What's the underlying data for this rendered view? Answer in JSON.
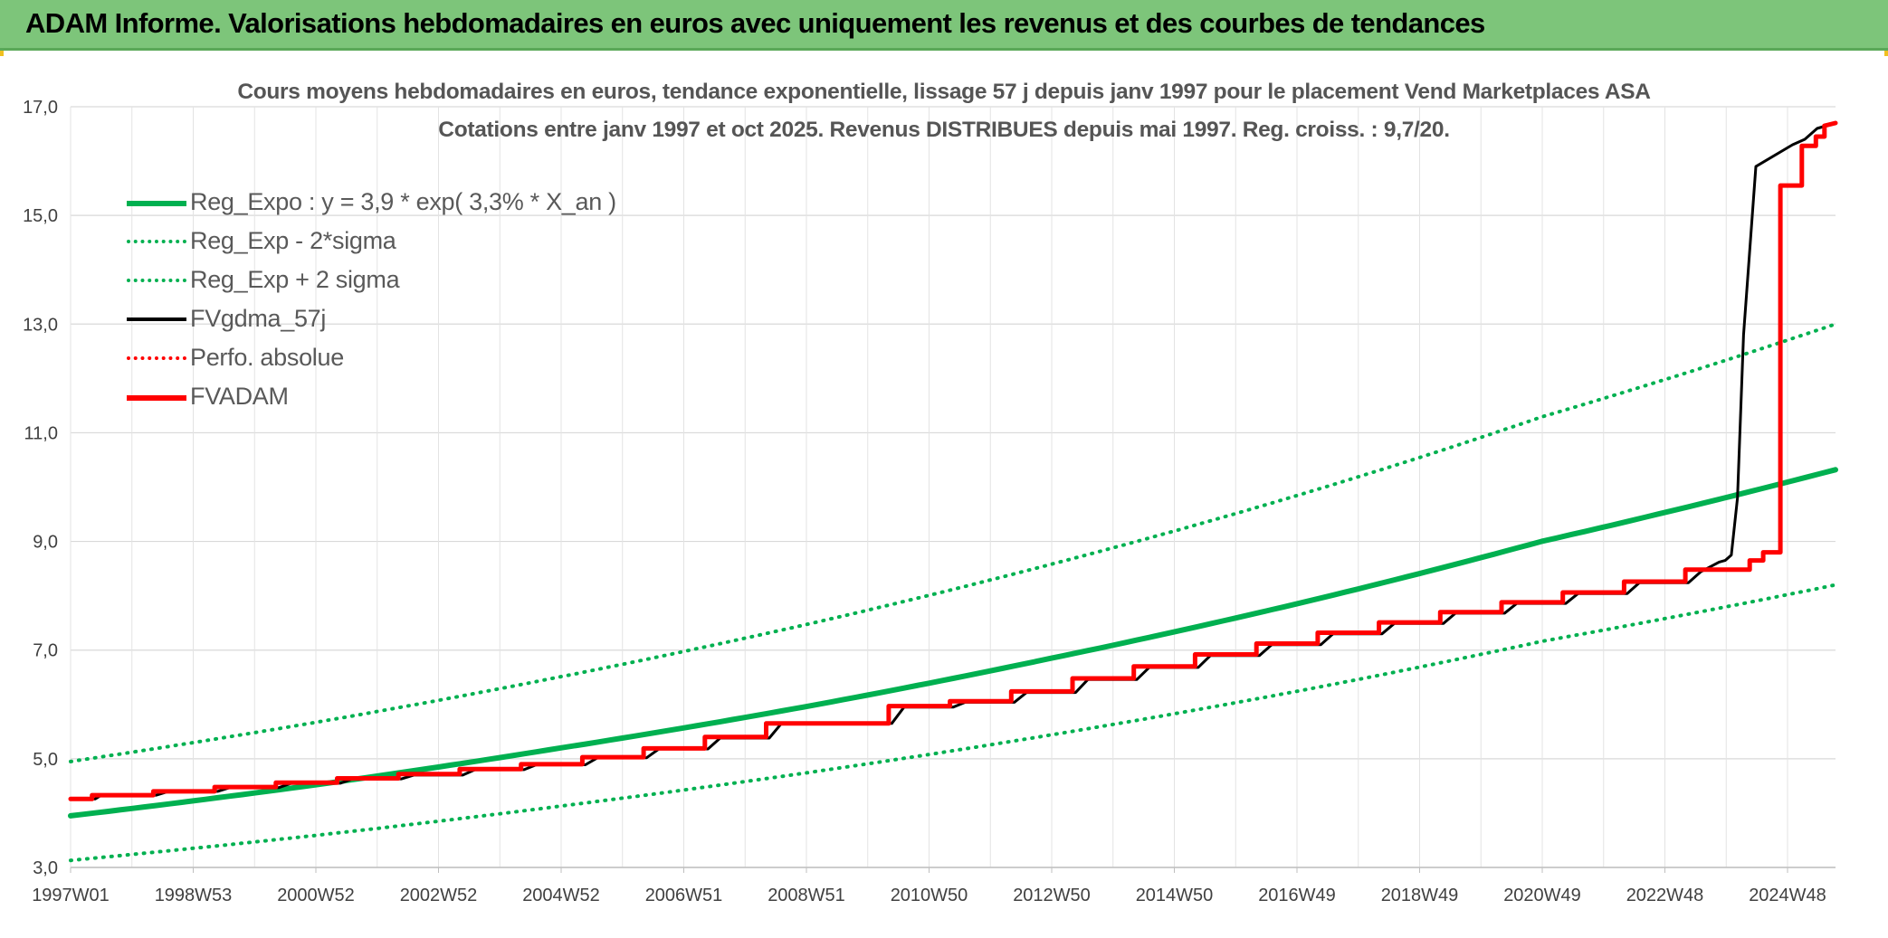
{
  "banner": {
    "title": "ADAM Informe. Valorisations hebdomadaires en euros avec uniquement les revenus et des courbes de tendances"
  },
  "colors": {
    "banner_bg": "#7dc57a",
    "reg_expo": "#00b050",
    "fvgdma": "#000000",
    "fvadam": "#ff0000",
    "grid": "#d9d9d9"
  },
  "chart_data": {
    "type": "line",
    "title": "Cours moyens hebdomadaires en euros, tendance exponentielle, lissage 57 j depuis janv 1997 pour le placement Vend Marketplaces ASA",
    "subtitle": "Cotations entre janv 1997 et oct 2025. Revenus DISTRIBUES depuis mai 1997. Reg. croiss. : 9,7/20.",
    "xlabel": "",
    "ylabel": "",
    "ylim": [
      3.0,
      17.0
    ],
    "y_ticks": [
      "3,0",
      "5,0",
      "7,0",
      "9,0",
      "11,0",
      "13,0",
      "15,0",
      "17,0"
    ],
    "x_range_years": [
      1997.0,
      2025.8
    ],
    "x_ticks": [
      "1997W01",
      "1998W53",
      "2000W52",
      "2002W52",
      "2004W52",
      "2006W51",
      "2008W51",
      "2010W50",
      "2012W50",
      "2014W50",
      "2016W49",
      "2018W49",
      "2020W49",
      "2022W48",
      "2024W48"
    ],
    "grid": true,
    "legend_placement": "top-left",
    "legend": [
      {
        "label": "Reg_Expo : y = 3,9 * exp( 3,3% *  X_an )",
        "color": "#00b050",
        "style": "solid"
      },
      {
        "label": "Reg_Exp - 2*sigma",
        "color": "#00b050",
        "style": "dotted"
      },
      {
        "label": "Reg_Exp + 2 sigma",
        "color": "#00b050",
        "style": "dotted"
      },
      {
        "label": "FVgdma_57j",
        "color": "#000000",
        "style": "solid"
      },
      {
        "label": "Perfo. absolue",
        "color": "#ff0000",
        "style": "dotted"
      },
      {
        "label": "FVADAM",
        "color": "#ff0000",
        "style": "solid"
      }
    ],
    "series": [
      {
        "name": "Reg_Expo : y = 3,9 * exp( 3,3% *  X_an )",
        "x": [
          1997.0,
          2001.0,
          2005.0,
          2009.0,
          2013.0,
          2017.0,
          2021.0,
          2025.8
        ],
        "values": [
          3.95,
          4.52,
          5.2,
          5.96,
          6.85,
          7.85,
          9.0,
          10.32
        ]
      },
      {
        "name": "Reg_Exp - 2*sigma",
        "x": [
          1997.0,
          2001.0,
          2005.0,
          2009.0,
          2013.0,
          2017.0,
          2021.0,
          2025.8
        ],
        "values": [
          3.13,
          3.59,
          4.13,
          4.74,
          5.44,
          6.24,
          7.16,
          8.2
        ]
      },
      {
        "name": "Reg_Exp + 2 sigma",
        "x": [
          1997.0,
          2001.0,
          2005.0,
          2009.0,
          2013.0,
          2017.0,
          2021.0,
          2025.8
        ],
        "values": [
          4.95,
          5.67,
          6.51,
          7.47,
          8.58,
          9.84,
          11.29,
          13.0
        ]
      },
      {
        "name": "FVgdma_57j",
        "x": [
          1997.0,
          1997.4,
          1997.5,
          1998.4,
          1998.6,
          1999.4,
          1999.6,
          2000.4,
          2000.6,
          2001.4,
          2001.6,
          2002.4,
          2002.6,
          2003.4,
          2003.6,
          2004.4,
          2004.6,
          2005.4,
          2005.6,
          2006.4,
          2006.6,
          2007.4,
          2007.6,
          2008.4,
          2008.6,
          2010.4,
          2010.6,
          2011.4,
          2011.6,
          2012.4,
          2012.6,
          2013.4,
          2013.6,
          2014.4,
          2014.6,
          2015.4,
          2015.6,
          2016.4,
          2016.6,
          2017.4,
          2017.6,
          2018.4,
          2018.6,
          2019.4,
          2019.6,
          2020.4,
          2020.6,
          2021.4,
          2021.6,
          2022.4,
          2022.6,
          2023.4,
          2023.6,
          2023.9,
          2024.0,
          2024.1,
          2024.2,
          2024.3,
          2024.5,
          2025.1,
          2025.3,
          2025.5,
          2025.8
        ],
        "values": [
          4.26,
          4.26,
          4.33,
          4.33,
          4.4,
          4.4,
          4.47,
          4.47,
          4.55,
          4.55,
          4.63,
          4.63,
          4.7,
          4.7,
          4.8,
          4.8,
          4.89,
          4.89,
          5.02,
          5.02,
          5.18,
          5.18,
          5.38,
          5.38,
          5.65,
          5.65,
          5.95,
          5.95,
          6.04,
          6.04,
          6.22,
          6.22,
          6.46,
          6.46,
          6.68,
          6.68,
          6.9,
          6.9,
          7.1,
          7.1,
          7.3,
          7.3,
          7.49,
          7.49,
          7.68,
          7.68,
          7.86,
          7.86,
          8.04,
          8.04,
          8.24,
          8.24,
          8.44,
          8.62,
          8.65,
          8.75,
          9.8,
          12.8,
          15.9,
          16.3,
          16.4,
          16.6,
          16.7
        ]
      },
      {
        "name": "FVADAM",
        "x": [
          1997.0,
          1997.35,
          1997.35,
          1998.35,
          1998.35,
          1999.35,
          1999.35,
          2000.35,
          2000.35,
          2001.35,
          2001.35,
          2002.35,
          2002.35,
          2003.35,
          2003.35,
          2004.35,
          2004.35,
          2005.35,
          2005.35,
          2006.35,
          2006.35,
          2007.35,
          2007.35,
          2008.35,
          2008.35,
          2010.35,
          2010.35,
          2011.35,
          2011.35,
          2012.35,
          2012.35,
          2013.35,
          2013.35,
          2014.35,
          2014.35,
          2015.35,
          2015.35,
          2016.35,
          2016.35,
          2017.35,
          2017.35,
          2018.35,
          2018.35,
          2019.35,
          2019.35,
          2020.35,
          2020.35,
          2021.35,
          2021.35,
          2022.35,
          2022.35,
          2023.35,
          2023.35,
          2024.4,
          2024.4,
          2024.62,
          2024.62,
          2024.9,
          2024.9,
          2025.25,
          2025.25,
          2025.48,
          2025.48,
          2025.62,
          2025.62,
          2025.8
        ],
        "values": [
          4.26,
          4.26,
          4.33,
          4.33,
          4.4,
          4.4,
          4.48,
          4.48,
          4.56,
          4.56,
          4.64,
          4.64,
          4.72,
          4.72,
          4.81,
          4.81,
          4.9,
          4.9,
          5.03,
          5.03,
          5.19,
          5.19,
          5.4,
          5.4,
          5.65,
          5.65,
          5.97,
          5.97,
          6.06,
          6.06,
          6.24,
          6.24,
          6.48,
          6.48,
          6.7,
          6.7,
          6.92,
          6.92,
          7.12,
          7.12,
          7.32,
          7.32,
          7.51,
          7.51,
          7.7,
          7.7,
          7.88,
          7.88,
          8.06,
          8.06,
          8.26,
          8.26,
          8.48,
          8.48,
          8.65,
          8.65,
          8.8,
          8.8,
          15.55,
          15.55,
          16.28,
          16.28,
          16.45,
          16.45,
          16.65,
          16.7
        ]
      }
    ]
  }
}
